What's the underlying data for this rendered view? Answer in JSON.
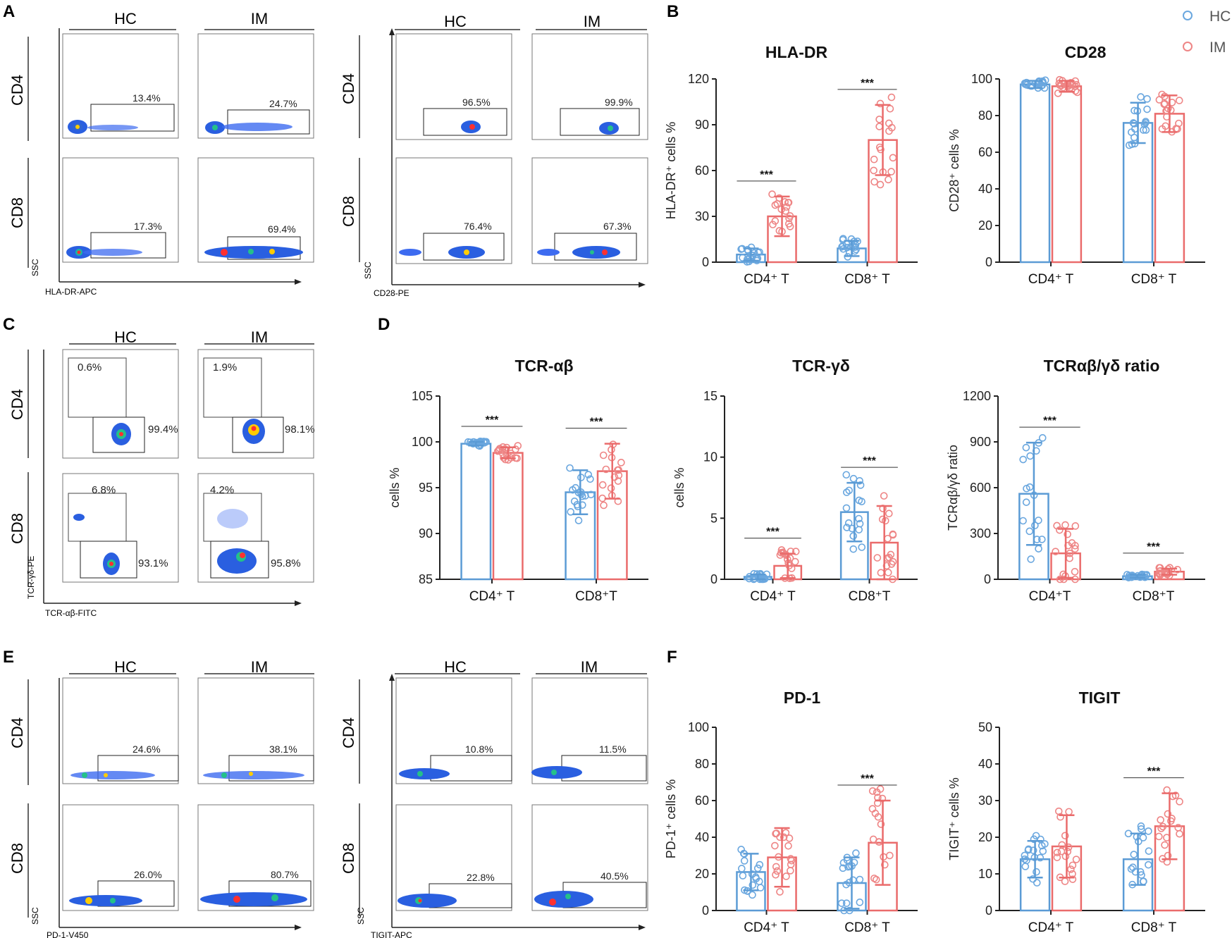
{
  "colors": {
    "hc": "#5b9bd5",
    "im": "#ea6b6b",
    "hc_dot": "#6aa7df",
    "im_dot": "#ee8585",
    "axis": "#222222"
  },
  "legend": {
    "hc": "HC",
    "im": "IM"
  },
  "panels": {
    "A": {
      "letter": "A",
      "left": {
        "group_labels": [
          "HC",
          "IM"
        ],
        "row_labels": [
          "CD4",
          "CD8"
        ],
        "x_label": "HLA-DR-APC",
        "y_label": "SSC",
        "gates": [
          "13.4%",
          "24.7%",
          "17.3%",
          "69.4%"
        ]
      },
      "right": {
        "group_labels": [
          "HC",
          "IM"
        ],
        "row_labels": [
          "CD4",
          "CD8"
        ],
        "x_label": "CD28-PE",
        "y_label": "SSC",
        "gates": [
          "96.5%",
          "99.9%",
          "76.4%",
          "67.3%"
        ]
      }
    },
    "C": {
      "letter": "C",
      "group_labels": [
        "HC",
        "IM"
      ],
      "row_labels": [
        "CD4",
        "CD8"
      ],
      "x_label": "TCR-αβ-FITC",
      "y_label": "TCR-γδ-PE",
      "gates_upper": [
        "0.6%",
        "1.9%",
        "6.8%",
        "4.2%"
      ],
      "gates_lower": [
        "99.4%",
        "98.1%",
        "93.1%",
        "95.8%"
      ]
    },
    "E": {
      "letter": "E",
      "left": {
        "group_labels": [
          "HC",
          "IM"
        ],
        "row_labels": [
          "CD4",
          "CD8"
        ],
        "x_label": "PD-1-V450",
        "y_label": "SSC",
        "gates": [
          "24.6%",
          "38.1%",
          "26.0%",
          "80.7%"
        ]
      },
      "right": {
        "group_labels": [
          "HC",
          "IM"
        ],
        "row_labels": [
          "CD4",
          "CD8"
        ],
        "x_label": "TIGIT-APC",
        "y_label": "SSC",
        "gates": [
          "10.8%",
          "11.5%",
          "22.8%",
          "40.5%"
        ]
      }
    },
    "B": {
      "letter": "B"
    },
    "D": {
      "letter": "D"
    },
    "F": {
      "letter": "F"
    }
  },
  "chart_data": [
    {
      "id": "hla",
      "type": "bar",
      "title": "HLA-DR",
      "ylabel": "HLA-DR⁺ cells %",
      "ylim": [
        0,
        120
      ],
      "yticks": [
        0,
        30,
        60,
        90,
        120
      ],
      "categories": [
        "CD4⁺ T",
        "CD8⁺ T"
      ],
      "series": [
        {
          "name": "HC",
          "values": [
            5,
            9
          ],
          "sd": [
            4,
            5
          ]
        },
        {
          "name": "IM",
          "values": [
            30,
            80
          ],
          "sd": [
            13,
            23
          ]
        }
      ],
      "significance": [
        "***",
        "***"
      ]
    },
    {
      "id": "cd28",
      "type": "bar",
      "title": "CD28",
      "ylabel": "CD28⁺ cells %",
      "ylim": [
        0,
        100
      ],
      "yticks": [
        0,
        20,
        40,
        60,
        80,
        100
      ],
      "categories": [
        "CD4⁺ T",
        "CD8⁺ T"
      ],
      "series": [
        {
          "name": "HC",
          "values": [
            97,
            76
          ],
          "sd": [
            2,
            11
          ]
        },
        {
          "name": "IM",
          "values": [
            96,
            81
          ],
          "sd": [
            3,
            10
          ]
        }
      ],
      "significance": [
        "",
        ""
      ]
    },
    {
      "id": "tcrab",
      "type": "bar",
      "title": "TCR-αβ",
      "ylabel": "cells %",
      "ylim": [
        85,
        105
      ],
      "yticks": [
        85,
        90,
        95,
        100,
        105
      ],
      "categories": [
        "CD4⁺ T",
        "CD8⁺T"
      ],
      "series": [
        {
          "name": "HC",
          "values": [
            99.8,
            94.5
          ],
          "sd": [
            0.2,
            2.4
          ]
        },
        {
          "name": "IM",
          "values": [
            98.8,
            96.8
          ],
          "sd": [
            0.6,
            3
          ]
        }
      ],
      "significance": [
        "***",
        "***"
      ]
    },
    {
      "id": "tcrgd",
      "type": "bar",
      "title": "TCR-γδ",
      "ylabel": "cells %",
      "ylim": [
        0,
        15
      ],
      "yticks": [
        0,
        5,
        10,
        15
      ],
      "categories": [
        "CD4⁺ T",
        "CD8⁺T"
      ],
      "series": [
        {
          "name": "HC",
          "values": [
            0.2,
            5.5
          ],
          "sd": [
            0.2,
            2.4
          ]
        },
        {
          "name": "IM",
          "values": [
            1.1,
            3
          ],
          "sd": [
            1,
            3
          ]
        }
      ],
      "significance": [
        "***",
        "***"
      ]
    },
    {
      "id": "ratio",
      "type": "bar",
      "title": "TCRαβ/γδ ratio",
      "ylabel": "TCRαβ/γδ ratio",
      "ylim": [
        0,
        1200
      ],
      "yticks": [
        0,
        300,
        600,
        900,
        1200
      ],
      "categories": [
        "CD4⁺T",
        "CD8⁺T"
      ],
      "series": [
        {
          "name": "HC",
          "values": [
            560,
            20
          ],
          "sd": [
            335,
            10
          ]
        },
        {
          "name": "IM",
          "values": [
            170,
            50
          ],
          "sd": [
            160,
            20
          ]
        }
      ],
      "significance": [
        "***",
        "***"
      ]
    },
    {
      "id": "pd1",
      "type": "bar",
      "title": "PD-1",
      "ylabel": "PD-1⁺ cells %",
      "ylim": [
        0,
        100
      ],
      "yticks": [
        0,
        20,
        40,
        60,
        80,
        100
      ],
      "categories": [
        "CD4⁺ T",
        "CD8⁺ T"
      ],
      "series": [
        {
          "name": "HC",
          "values": [
            21,
            15
          ],
          "sd": [
            10,
            14
          ]
        },
        {
          "name": "IM",
          "values": [
            29,
            37
          ],
          "sd": [
            16,
            23
          ]
        }
      ],
      "significance": [
        "",
        "***"
      ]
    },
    {
      "id": "tigit",
      "type": "bar",
      "title": "TIGIT",
      "ylabel": "TIGIT⁺ cells %",
      "ylim": [
        0,
        50
      ],
      "yticks": [
        0,
        10,
        20,
        30,
        40,
        50
      ],
      "categories": [
        "CD4⁺ T",
        "CD8⁺ T"
      ],
      "series": [
        {
          "name": "HC",
          "values": [
            14,
            14
          ],
          "sd": [
            5,
            7
          ]
        },
        {
          "name": "IM",
          "values": [
            17.5,
            23
          ],
          "sd": [
            8.5,
            9
          ]
        }
      ],
      "significance": [
        "",
        "***"
      ]
    }
  ]
}
